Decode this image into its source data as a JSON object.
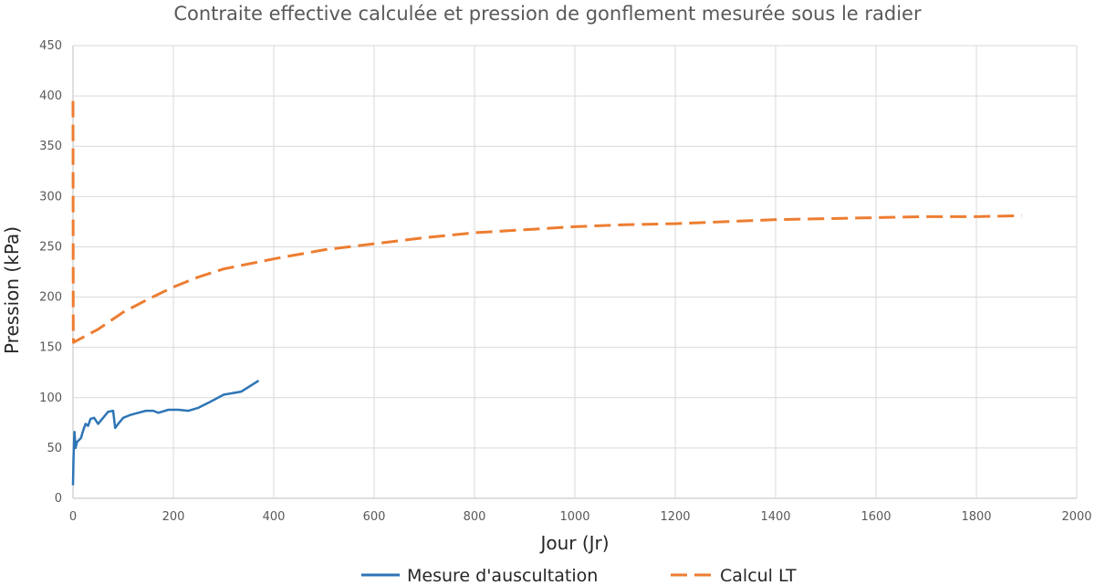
{
  "chart_data": {
    "type": "line",
    "title": "Contraite effective calculée et pression de gonflement mesurée sous le radier",
    "xlabel": "Jour (Jr)",
    "ylabel": "Pression (kPa)",
    "xlim": [
      0,
      2000
    ],
    "ylim": [
      0,
      450
    ],
    "xticks": [
      0,
      200,
      400,
      600,
      800,
      1000,
      1200,
      1400,
      1600,
      1800,
      2000
    ],
    "yticks": [
      0,
      50,
      100,
      150,
      200,
      250,
      300,
      350,
      400,
      450
    ],
    "grid": true,
    "legend_position": "bottom",
    "series": [
      {
        "name": "Mesure d'auscultation",
        "color": "#2e75b6",
        "style": "solid",
        "points": [
          [
            0,
            13
          ],
          [
            1,
            40
          ],
          [
            2,
            55
          ],
          [
            3,
            66
          ],
          [
            5,
            50
          ],
          [
            8,
            56
          ],
          [
            12,
            58
          ],
          [
            16,
            60
          ],
          [
            20,
            67
          ],
          [
            25,
            74
          ],
          [
            30,
            72
          ],
          [
            35,
            79
          ],
          [
            42,
            80
          ],
          [
            50,
            74
          ],
          [
            60,
            80
          ],
          [
            70,
            86
          ],
          [
            80,
            87
          ],
          [
            84,
            70
          ],
          [
            90,
            74
          ],
          [
            100,
            80
          ],
          [
            115,
            83
          ],
          [
            130,
            85
          ],
          [
            145,
            87
          ],
          [
            160,
            87
          ],
          [
            170,
            85
          ],
          [
            190,
            88
          ],
          [
            210,
            88
          ],
          [
            230,
            87
          ],
          [
            250,
            90
          ],
          [
            270,
            95
          ],
          [
            300,
            103
          ],
          [
            335,
            106
          ],
          [
            370,
            117
          ]
        ]
      },
      {
        "name": "Calcul LT",
        "color": "#ed7d31",
        "style": "dashed",
        "points": [
          [
            0,
            395
          ],
          [
            0.5,
            165
          ],
          [
            1,
            155
          ],
          [
            50,
            168
          ],
          [
            100,
            185
          ],
          [
            150,
            198
          ],
          [
            200,
            210
          ],
          [
            250,
            220
          ],
          [
            300,
            228
          ],
          [
            400,
            238
          ],
          [
            500,
            247
          ],
          [
            600,
            253
          ],
          [
            700,
            259
          ],
          [
            800,
            264
          ],
          [
            900,
            267
          ],
          [
            1000,
            270
          ],
          [
            1100,
            272
          ],
          [
            1200,
            273
          ],
          [
            1300,
            275
          ],
          [
            1400,
            277
          ],
          [
            1500,
            278
          ],
          [
            1600,
            279
          ],
          [
            1700,
            280
          ],
          [
            1800,
            280
          ],
          [
            1890,
            281
          ]
        ]
      }
    ]
  }
}
